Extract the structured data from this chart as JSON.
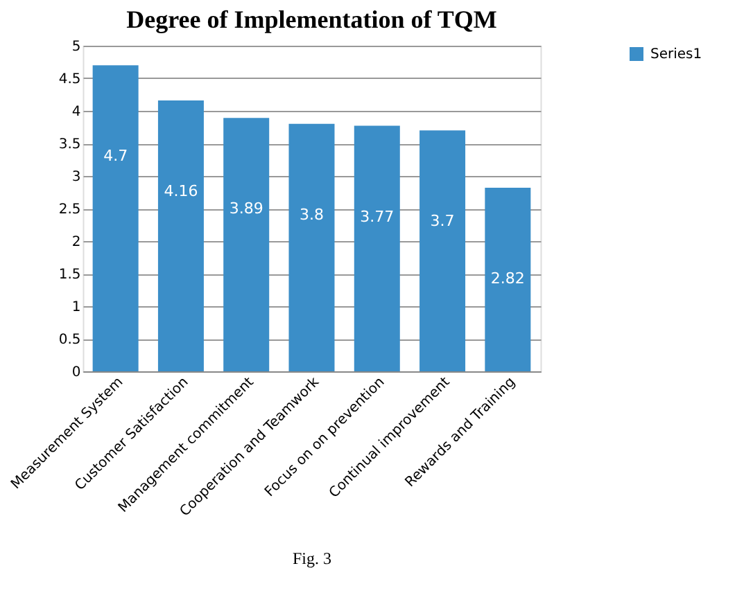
{
  "chart_data": {
    "type": "bar",
    "title": "Degree of Implementation  of TQM",
    "categories": [
      "Measurement System",
      "Customer Satisfaction",
      "Management commitment",
      "Cooperation and Teamwork",
      "Focus on on prevention",
      "Continual improvement",
      "Rewards and Training"
    ],
    "series": [
      {
        "name": "Series1",
        "color": "#3b8ec8",
        "values": [
          4.7,
          4.16,
          3.89,
          3.8,
          3.77,
          3.7,
          2.82
        ]
      }
    ],
    "ylim": [
      0,
      5
    ],
    "yticks": [
      0,
      0.5,
      1,
      1.5,
      2,
      2.5,
      3,
      3.5,
      4,
      4.5,
      5
    ],
    "grid": "y",
    "legend": "right",
    "data_labels": true,
    "annotations": [
      "Fig. 3"
    ]
  }
}
